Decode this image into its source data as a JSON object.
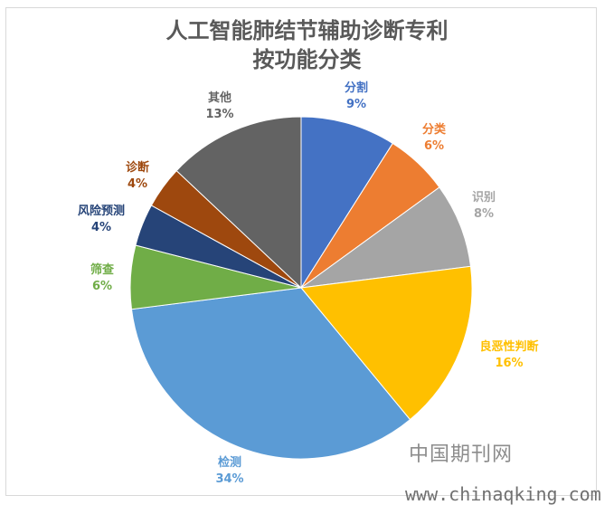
{
  "chart_data": {
    "type": "pie",
    "title_line1": "人工智能肺结节辅助诊断专利",
    "title_line2": "按功能分类",
    "slices": [
      {
        "label": "分割",
        "percent_label": "9%",
        "value": 9,
        "color": "#4472C4"
      },
      {
        "label": "分类",
        "percent_label": "6%",
        "value": 6,
        "color": "#ED7D31"
      },
      {
        "label": "识别",
        "percent_label": "8%",
        "value": 8,
        "color": "#A5A5A5"
      },
      {
        "label": "良恶性判断",
        "percent_label": "16%",
        "value": 16,
        "color": "#FFC000"
      },
      {
        "label": "检测",
        "percent_label": "34%",
        "value": 34,
        "color": "#5B9BD5"
      },
      {
        "label": "筛查",
        "percent_label": "6%",
        "value": 6,
        "color": "#70AD47"
      },
      {
        "label": "风险预测",
        "percent_label": "4%",
        "value": 4,
        "color": "#264478"
      },
      {
        "label": "诊断",
        "percent_label": "4%",
        "value": 4,
        "color": "#9E480E"
      },
      {
        "label": "其他",
        "percent_label": "13%",
        "value": 13,
        "color": "#636363"
      }
    ]
  },
  "watermark": {
    "text_cn": "中国期刊网",
    "text_url": "www.chinaqking.com"
  }
}
